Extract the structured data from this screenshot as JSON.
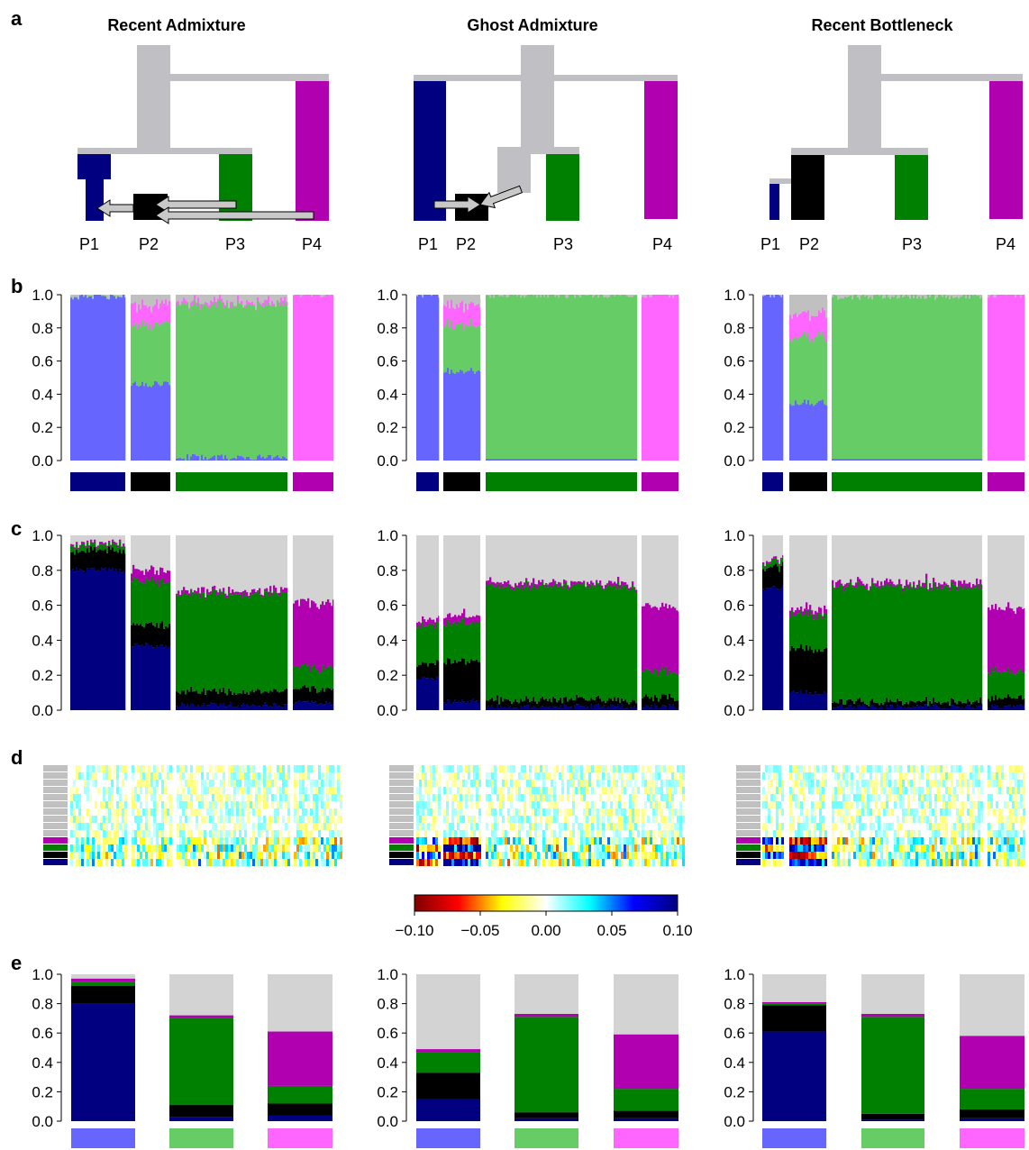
{
  "panel_letters": [
    "a",
    "b",
    "c",
    "d",
    "e"
  ],
  "colors": {
    "p1_dark": "#000080",
    "p2_dark": "#000000",
    "p3_dark": "#008000",
    "p4_dark": "#b000b0",
    "k_blue": "#6666ff",
    "k_green": "#66cc66",
    "k_pink": "#ff66ff",
    "k_grey": "#c0c0c0",
    "ghost": "#d3d3d3",
    "tree": "#c0c0c4"
  },
  "scenarios": [
    {
      "title": "Recent Admixture",
      "pop_labels": [
        "P1",
        "P2",
        "P3",
        "P4"
      ],
      "b_pops": [
        {
          "k_blue": 0.99,
          "k_green": 0.005,
          "k_pink": 0.0,
          "k_grey": 0.005
        },
        {
          "k_blue": 0.46,
          "k_green": 0.36,
          "k_pink": 0.12,
          "k_grey": 0.06
        },
        {
          "k_blue": 0.02,
          "k_green": 0.92,
          "k_pink": 0.02,
          "k_grey": 0.04
        },
        {
          "k_blue": 0.0,
          "k_green": 0.0,
          "k_pink": 1.0,
          "k_grey": 0.0
        }
      ],
      "c_pops": [
        {
          "p1_dark": 0.8,
          "p2_dark": 0.11,
          "p3_dark": 0.03,
          "p4_dark": 0.01
        },
        {
          "p1_dark": 0.37,
          "p2_dark": 0.12,
          "p3_dark": 0.25,
          "p4_dark": 0.06
        },
        {
          "p1_dark": 0.03,
          "p2_dark": 0.08,
          "p3_dark": 0.56,
          "p4_dark": 0.02
        },
        {
          "p1_dark": 0.04,
          "p2_dark": 0.08,
          "p3_dark": 0.12,
          "p4_dark": 0.37
        }
      ],
      "e_pops": [
        {
          "p1_dark": 0.8,
          "p2_dark": 0.12,
          "p3_dark": 0.03,
          "p4_dark": 0.02
        },
        {
          "p1_dark": 0.03,
          "p2_dark": 0.08,
          "p3_dark": 0.59,
          "p4_dark": 0.02
        },
        {
          "p1_dark": 0.04,
          "p2_dark": 0.08,
          "p3_dark": 0.12,
          "p4_dark": 0.37
        }
      ]
    },
    {
      "title": "Ghost Admixture",
      "pop_labels": [
        "P1",
        "P2",
        "P3",
        "P4"
      ],
      "b_pops": [
        {
          "k_blue": 1.0,
          "k_green": 0.0,
          "k_pink": 0.0,
          "k_grey": 0.0
        },
        {
          "k_blue": 0.54,
          "k_green": 0.28,
          "k_pink": 0.12,
          "k_grey": 0.06
        },
        {
          "k_blue": 0.01,
          "k_green": 0.99,
          "k_pink": 0.0,
          "k_grey": 0.0
        },
        {
          "k_blue": 0.0,
          "k_green": 0.0,
          "k_pink": 1.0,
          "k_grey": 0.0
        }
      ],
      "c_pops": [
        {
          "p1_dark": 0.18,
          "p2_dark": 0.08,
          "p3_dark": 0.22,
          "p4_dark": 0.03
        },
        {
          "p1_dark": 0.05,
          "p2_dark": 0.23,
          "p3_dark": 0.22,
          "p4_dark": 0.04
        },
        {
          "p1_dark": 0.02,
          "p2_dark": 0.04,
          "p3_dark": 0.65,
          "p4_dark": 0.02
        },
        {
          "p1_dark": 0.02,
          "p2_dark": 0.05,
          "p3_dark": 0.15,
          "p4_dark": 0.37
        }
      ],
      "e_pops": [
        {
          "p1_dark": 0.15,
          "p2_dark": 0.18,
          "p3_dark": 0.14,
          "p4_dark": 0.02
        },
        {
          "p1_dark": 0.02,
          "p2_dark": 0.04,
          "p3_dark": 0.65,
          "p4_dark": 0.02
        },
        {
          "p1_dark": 0.02,
          "p2_dark": 0.05,
          "p3_dark": 0.15,
          "p4_dark": 0.37
        }
      ]
    },
    {
      "title": "Recent Bottleneck",
      "pop_labels": [
        "P1",
        "P2",
        "P3",
        "P4"
      ],
      "b_pops": [
        {
          "k_blue": 1.0,
          "k_green": 0.0,
          "k_pink": 0.0,
          "k_grey": 0.0
        },
        {
          "k_blue": 0.35,
          "k_green": 0.4,
          "k_pink": 0.14,
          "k_grey": 0.11
        },
        {
          "k_blue": 0.01,
          "k_green": 0.98,
          "k_pink": 0.0,
          "k_grey": 0.01
        },
        {
          "k_blue": 0.0,
          "k_green": 0.0,
          "k_pink": 1.0,
          "k_grey": 0.0
        }
      ],
      "c_pops": [
        {
          "p1_dark": 0.7,
          "p2_dark": 0.12,
          "p3_dark": 0.03,
          "p4_dark": 0.01
        },
        {
          "p1_dark": 0.1,
          "p2_dark": 0.25,
          "p3_dark": 0.2,
          "p4_dark": 0.03
        },
        {
          "p1_dark": 0.02,
          "p2_dark": 0.03,
          "p3_dark": 0.66,
          "p4_dark": 0.02
        },
        {
          "p1_dark": 0.02,
          "p2_dark": 0.05,
          "p3_dark": 0.15,
          "p4_dark": 0.36
        }
      ],
      "e_pops": [
        {
          "p1_dark": 0.61,
          "p2_dark": 0.18,
          "p3_dark": 0.01,
          "p4_dark": 0.01
        },
        {
          "p1_dark": 0.01,
          "p2_dark": 0.04,
          "p3_dark": 0.66,
          "p4_dark": 0.02
        },
        {
          "p1_dark": 0.02,
          "p2_dark": 0.06,
          "p3_dark": 0.14,
          "p4_dark": 0.36
        }
      ]
    }
  ],
  "colorbar": {
    "tick_labels": [
      "−0.10",
      "−0.05",
      "0.00",
      "0.05",
      "0.10"
    ],
    "colors": [
      "#800000",
      "#ff0000",
      "#ffff00",
      "#ffffff",
      "#00ffff",
      "#0000ff",
      "#000080"
    ]
  },
  "chart_data": [
    {
      "type": "bar",
      "panel": "b",
      "ylim": [
        0,
        1
      ],
      "yticks": [
        "0.0",
        "0.2",
        "0.4",
        "0.6",
        "0.8",
        "1.0"
      ],
      "stacked": true,
      "note_values": "mean ancestry proportions per population (P1, P2, P3, P4) per scenario; stack order bottom-to-top: blue, green, pink, grey"
    },
    {
      "type": "bar",
      "panel": "c",
      "ylim": [
        0,
        1
      ],
      "yticks": [
        "0.0",
        "0.2",
        "0.4",
        "0.6",
        "0.8",
        "1.0"
      ],
      "stacked": true
    },
    {
      "type": "heatmap",
      "panel": "d",
      "value_range": [
        -0.1,
        0.1
      ]
    },
    {
      "type": "bar",
      "panel": "e",
      "ylim": [
        0,
        1
      ],
      "yticks": [
        "0.0",
        "0.2",
        "0.4",
        "0.6",
        "0.8",
        "1.0"
      ],
      "stacked": true
    }
  ]
}
